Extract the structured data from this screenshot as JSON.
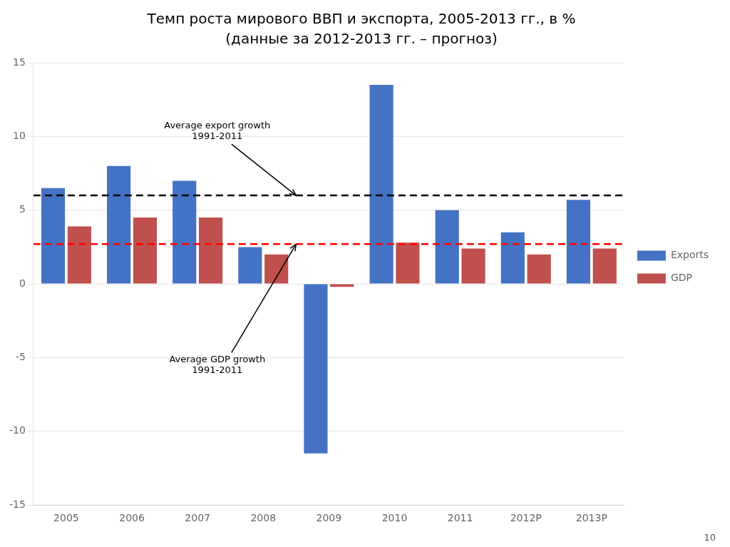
{
  "chart_data": {
    "type": "bar",
    "title": "Темп роста мирового ВВП и экспорта, 2005-2013 гг., в %",
    "subtitle": "(данные за 2012-2013 гг. – прогноз)",
    "categories": [
      "2005",
      "2006",
      "2007",
      "2008",
      "2009",
      "2010",
      "2011",
      "2012P",
      "2013P"
    ],
    "series": [
      {
        "name": "Exports",
        "color": "#4472C4",
        "values": [
          6.5,
          8.0,
          7.0,
          2.5,
          -11.5,
          13.5,
          5.0,
          3.5,
          5.7
        ]
      },
      {
        "name": "GDP",
        "color": "#C0504D",
        "values": [
          3.9,
          4.5,
          4.5,
          2.0,
          -0.2,
          2.8,
          2.4,
          2.0,
          2.4
        ]
      }
    ],
    "annotations": [
      {
        "text": "Average export growth\n1991-2011",
        "y": 6.0,
        "color": "#000000",
        "line_style": "dashed"
      },
      {
        "text": "Average GDP growth\n1991-2011",
        "y": 2.7,
        "color": "#FF0000",
        "line_style": "dashed"
      },
      {
        "text": "10"
      }
    ],
    "ylim": [
      -15,
      15
    ],
    "yticks": [
      -15,
      -10,
      -5,
      0,
      5,
      10,
      15
    ],
    "grid": true,
    "legend": "right"
  }
}
